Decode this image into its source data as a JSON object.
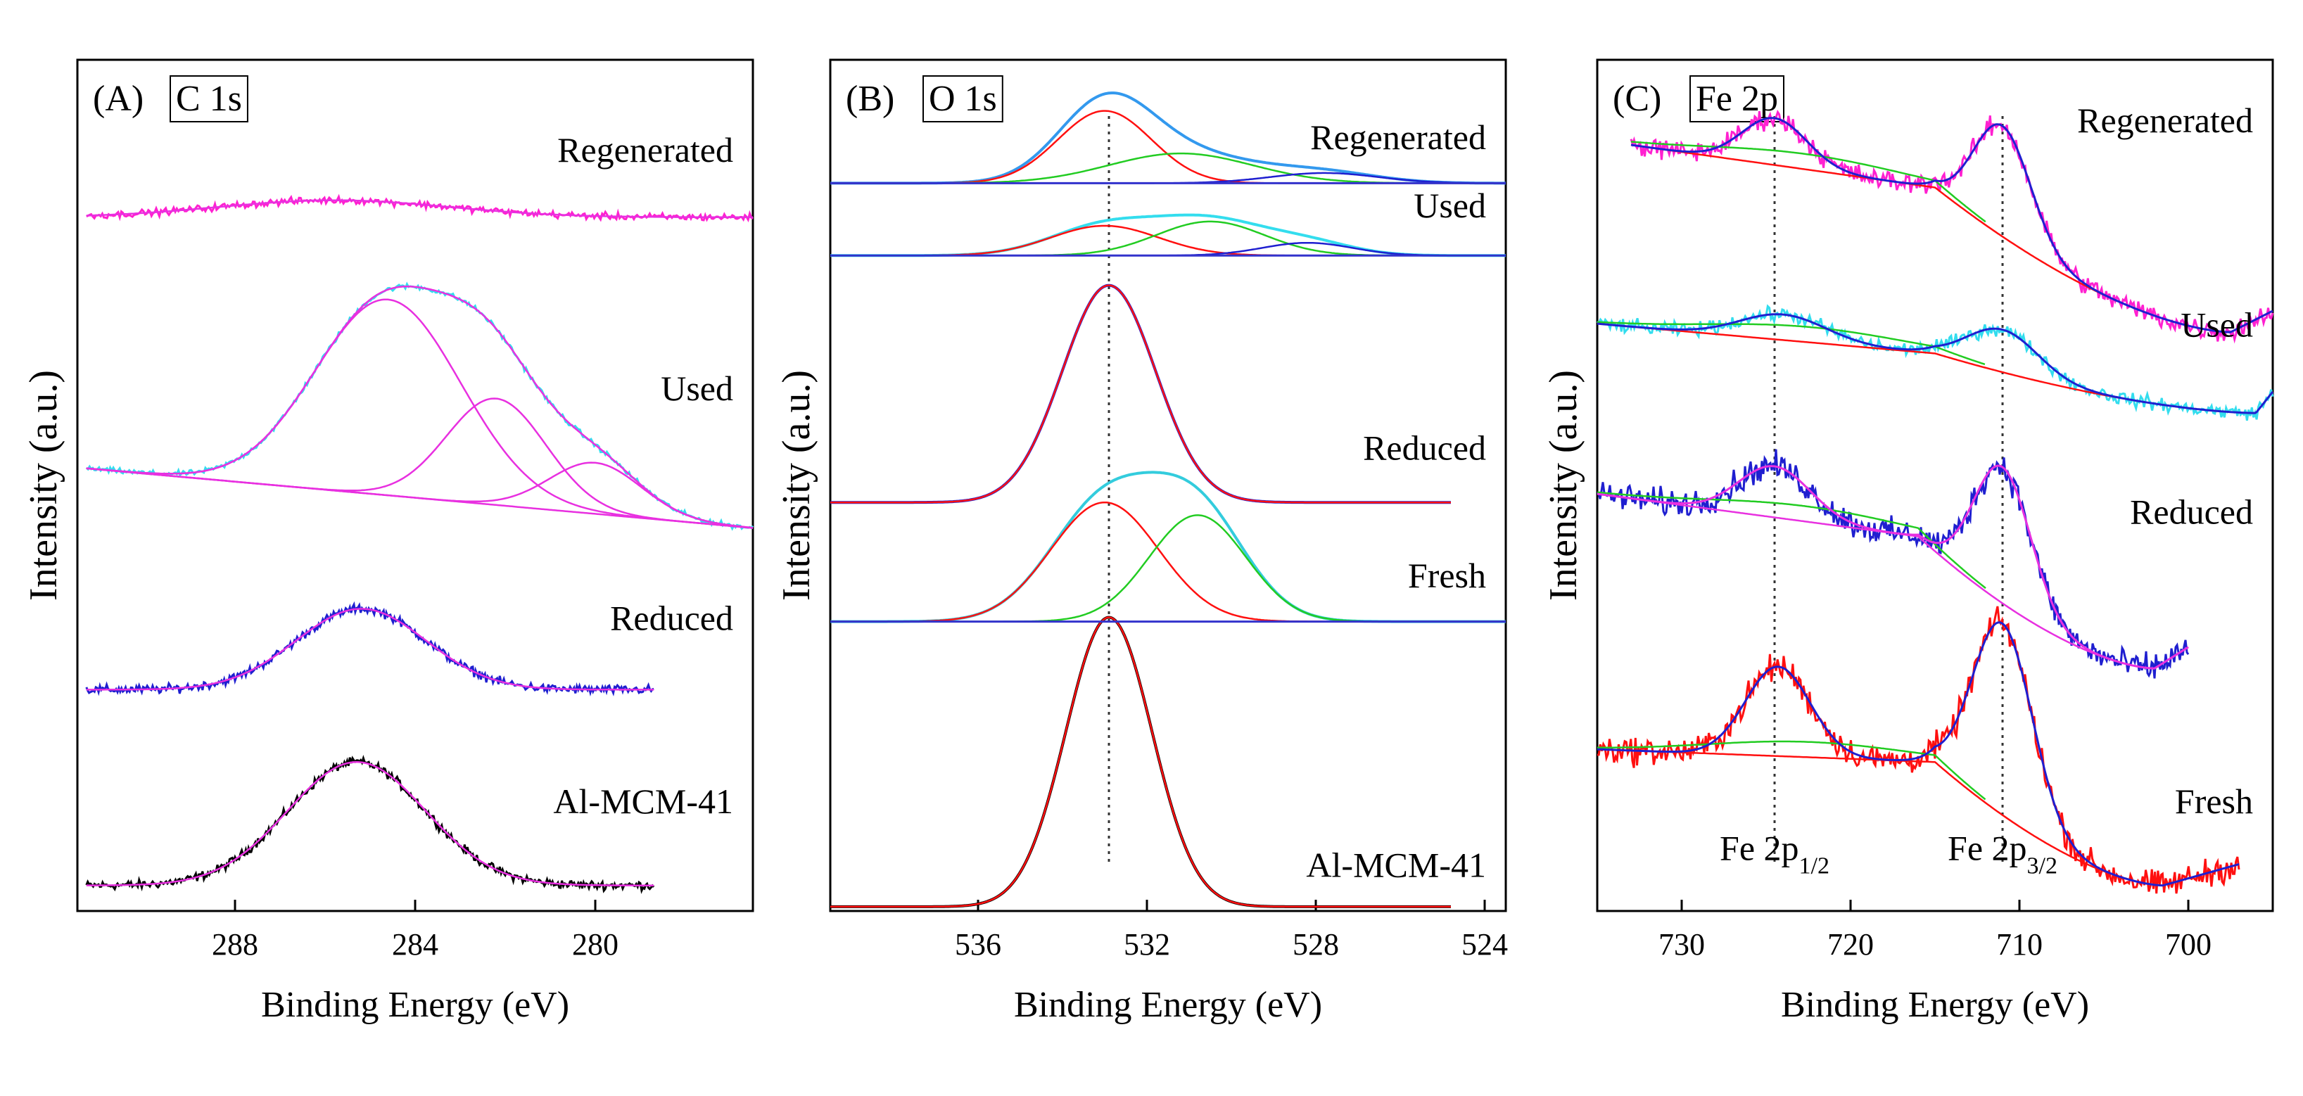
{
  "figure": {
    "panels": [
      {
        "key": "C1s",
        "panel_letter": "(A)",
        "element_title": "C 1s",
        "ylabel": "Intensity (a.u.)",
        "xlabel": "Binding Energy (eV)"
      },
      {
        "key": "O1s",
        "panel_letter": "(B)",
        "element_title": "O 1s",
        "ylabel": "Intensity (a.u.)",
        "xlabel": "Binding Energy (eV)"
      },
      {
        "key": "Fe2p",
        "panel_letter": "(C)",
        "element_title": "Fe 2p",
        "ylabel": "Intensity (a.u.)",
        "xlabel": "Binding Energy (eV)",
        "peak_labels": [
          {
            "base": "Fe 2p",
            "sub": "1/2",
            "energy": 724.5
          },
          {
            "base": "Fe 2p",
            "sub": "3/2",
            "energy": 711
          }
        ]
      }
    ]
  },
  "chart_data": [
    {
      "type": "line",
      "title": "(A) C 1s",
      "xlabel": "Binding Energy (eV)",
      "ylabel": "Intensity (a.u.)",
      "xlim": [
        291.5,
        276.5
      ],
      "x_reversed": true,
      "xticks": [
        288,
        284,
        280
      ],
      "ylim": [
        0,
        10
      ],
      "y_ticks_shown": false,
      "series": [
        {
          "name": "Al-MCM-41",
          "color": "#000000",
          "baseline": 0.3,
          "noise": 0.05,
          "xrange": [
            291.3,
            278.7
          ],
          "components": [
            {
              "center": 285.3,
              "fwhm": 3.6,
              "height": 1.45
            }
          ]
        },
        {
          "name": "Reduced",
          "color": "#1f1fd0",
          "baseline": 2.6,
          "noise": 0.05,
          "xrange": [
            291.3,
            278.7
          ],
          "components": [
            {
              "center": 285.2,
              "fwhm": 3.4,
              "height": 0.95
            }
          ]
        },
        {
          "name": "Used",
          "color": "#33ddee",
          "baseline_start": 5.2,
          "baseline_end": 4.5,
          "noise": 0.03,
          "xrange": [
            291.3,
            276.5
          ],
          "components": [
            {
              "center": 284.6,
              "fwhm": 3.8,
              "height": 2.3
            },
            {
              "center": 282.2,
              "fwhm": 2.6,
              "height": 1.25
            },
            {
              "center": 280.0,
              "fwhm": 2.4,
              "height": 0.6
            }
          ]
        },
        {
          "name": "Regenerated",
          "color": "#ff20d0",
          "baseline": 8.15,
          "noise": 0.04,
          "xrange": [
            291.3,
            276.5
          ],
          "components": [
            {
              "center": 285.8,
              "fwhm": 6.0,
              "height": 0.2
            }
          ]
        }
      ]
    },
    {
      "type": "line",
      "title": "(B) O 1s",
      "xlabel": "Binding Energy (eV)",
      "ylabel": "Intensity (a.u.)",
      "xlim": [
        539.5,
        523.5
      ],
      "x_reversed": true,
      "xticks": [
        536,
        532,
        528,
        524
      ],
      "ylim": [
        0,
        10
      ],
      "y_ticks_shown": false,
      "reference_line_energy": 532.9,
      "series": [
        {
          "name": "Al-MCM-41",
          "color": "#000000",
          "baseline": 0.05,
          "noise": 0,
          "xrange": [
            539.5,
            524.8
          ],
          "components": [
            {
              "center": 532.9,
              "fwhm": 2.4,
              "height": 3.4
            }
          ]
        },
        {
          "name": "Fresh",
          "color": "#33ccdd",
          "baseline": 3.4,
          "noise": 0,
          "xrange": [
            539.5,
            523.5
          ],
          "components": [
            {
              "center": 533.0,
              "fwhm": 3.0,
              "height": 1.4
            },
            {
              "center": 530.8,
              "fwhm": 2.7,
              "height": 1.25
            }
          ]
        },
        {
          "name": "Reduced",
          "color": "#1f1fd0",
          "baseline": 4.8,
          "noise": 0,
          "xrange": [
            539.5,
            524.8
          ],
          "components": [
            {
              "center": 532.9,
              "fwhm": 2.6,
              "height": 2.55
            }
          ]
        },
        {
          "name": "Used",
          "color": "#33ddee",
          "baseline": 7.7,
          "noise": 0,
          "xrange": [
            539.5,
            523.5
          ],
          "components": [
            {
              "center": 533.0,
              "fwhm": 3.0,
              "height": 0.35
            },
            {
              "center": 530.5,
              "fwhm": 3.0,
              "height": 0.4
            },
            {
              "center": 528.2,
              "fwhm": 2.5,
              "height": 0.15
            }
          ]
        },
        {
          "name": "Regenerated",
          "color": "#3399ee",
          "baseline": 8.55,
          "noise": 0,
          "xrange": [
            539.5,
            523.5
          ],
          "components": [
            {
              "center": 533.0,
              "fwhm": 2.6,
              "height": 0.85
            },
            {
              "center": 531.2,
              "fwhm": 4.0,
              "height": 0.35
            },
            {
              "center": 527.8,
              "fwhm": 3.0,
              "height": 0.12
            }
          ]
        }
      ]
    },
    {
      "type": "line",
      "title": "(C) Fe 2p",
      "xlabel": "Binding Energy (eV)",
      "ylabel": "Intensity (a.u.)",
      "xlim": [
        735,
        695
      ],
      "x_reversed": true,
      "xticks": [
        730,
        720,
        710,
        700
      ],
      "ylim": [
        0,
        10
      ],
      "y_ticks_shown": false,
      "reference_line_energies": [
        724.5,
        711
      ],
      "series": [
        {
          "name": "Fresh",
          "color": "#ff1010",
          "bg_start": 1.9,
          "bg_mid_x": 715,
          "bg_mid": 1.75,
          "bg_end": 0.3,
          "min_x": 701.5,
          "noise": 0.16,
          "xrange": [
            735,
            697
          ],
          "components": [
            {
              "center": 724.3,
              "fwhm": 4.5,
              "height": 1.05
            },
            {
              "center": 711.0,
              "fwhm": 4.2,
              "height": 2.25
            }
          ]
        },
        {
          "name": "Reduced",
          "color": "#1f1fd0",
          "bg_start": 4.9,
          "bg_mid_x": 716,
          "bg_mid": 4.4,
          "bg_end": 2.85,
          "min_x": 702,
          "noise": 0.16,
          "xrange": [
            735,
            700
          ],
          "components": [
            {
              "center": 724.5,
              "fwhm": 5.0,
              "height": 0.6
            },
            {
              "center": 711.0,
              "fwhm": 4.0,
              "height": 1.6
            }
          ]
        },
        {
          "name": "Used",
          "color": "#33ddee",
          "bg_start": 6.9,
          "bg_mid_x": 715,
          "bg_mid": 6.55,
          "bg_end": 5.85,
          "min_x": 696,
          "noise": 0.08,
          "xrange": [
            735,
            695
          ],
          "components": [
            {
              "center": 724.0,
              "fwhm": 6.0,
              "height": 0.3
            },
            {
              "center": 711.0,
              "fwhm": 5.0,
              "height": 0.5
            }
          ]
        },
        {
          "name": "Regenerated",
          "color": "#ff20d0",
          "bg_start": 9.0,
          "bg_mid_x": 715,
          "bg_mid": 8.5,
          "bg_end": 6.8,
          "min_x": 697.5,
          "noise": 0.12,
          "xrange": [
            733,
            695
          ],
          "components": [
            {
              "center": 724.5,
              "fwhm": 4.5,
              "height": 0.55
            },
            {
              "center": 711.0,
              "fwhm": 4.0,
              "height": 1.3
            }
          ]
        }
      ]
    }
  ]
}
